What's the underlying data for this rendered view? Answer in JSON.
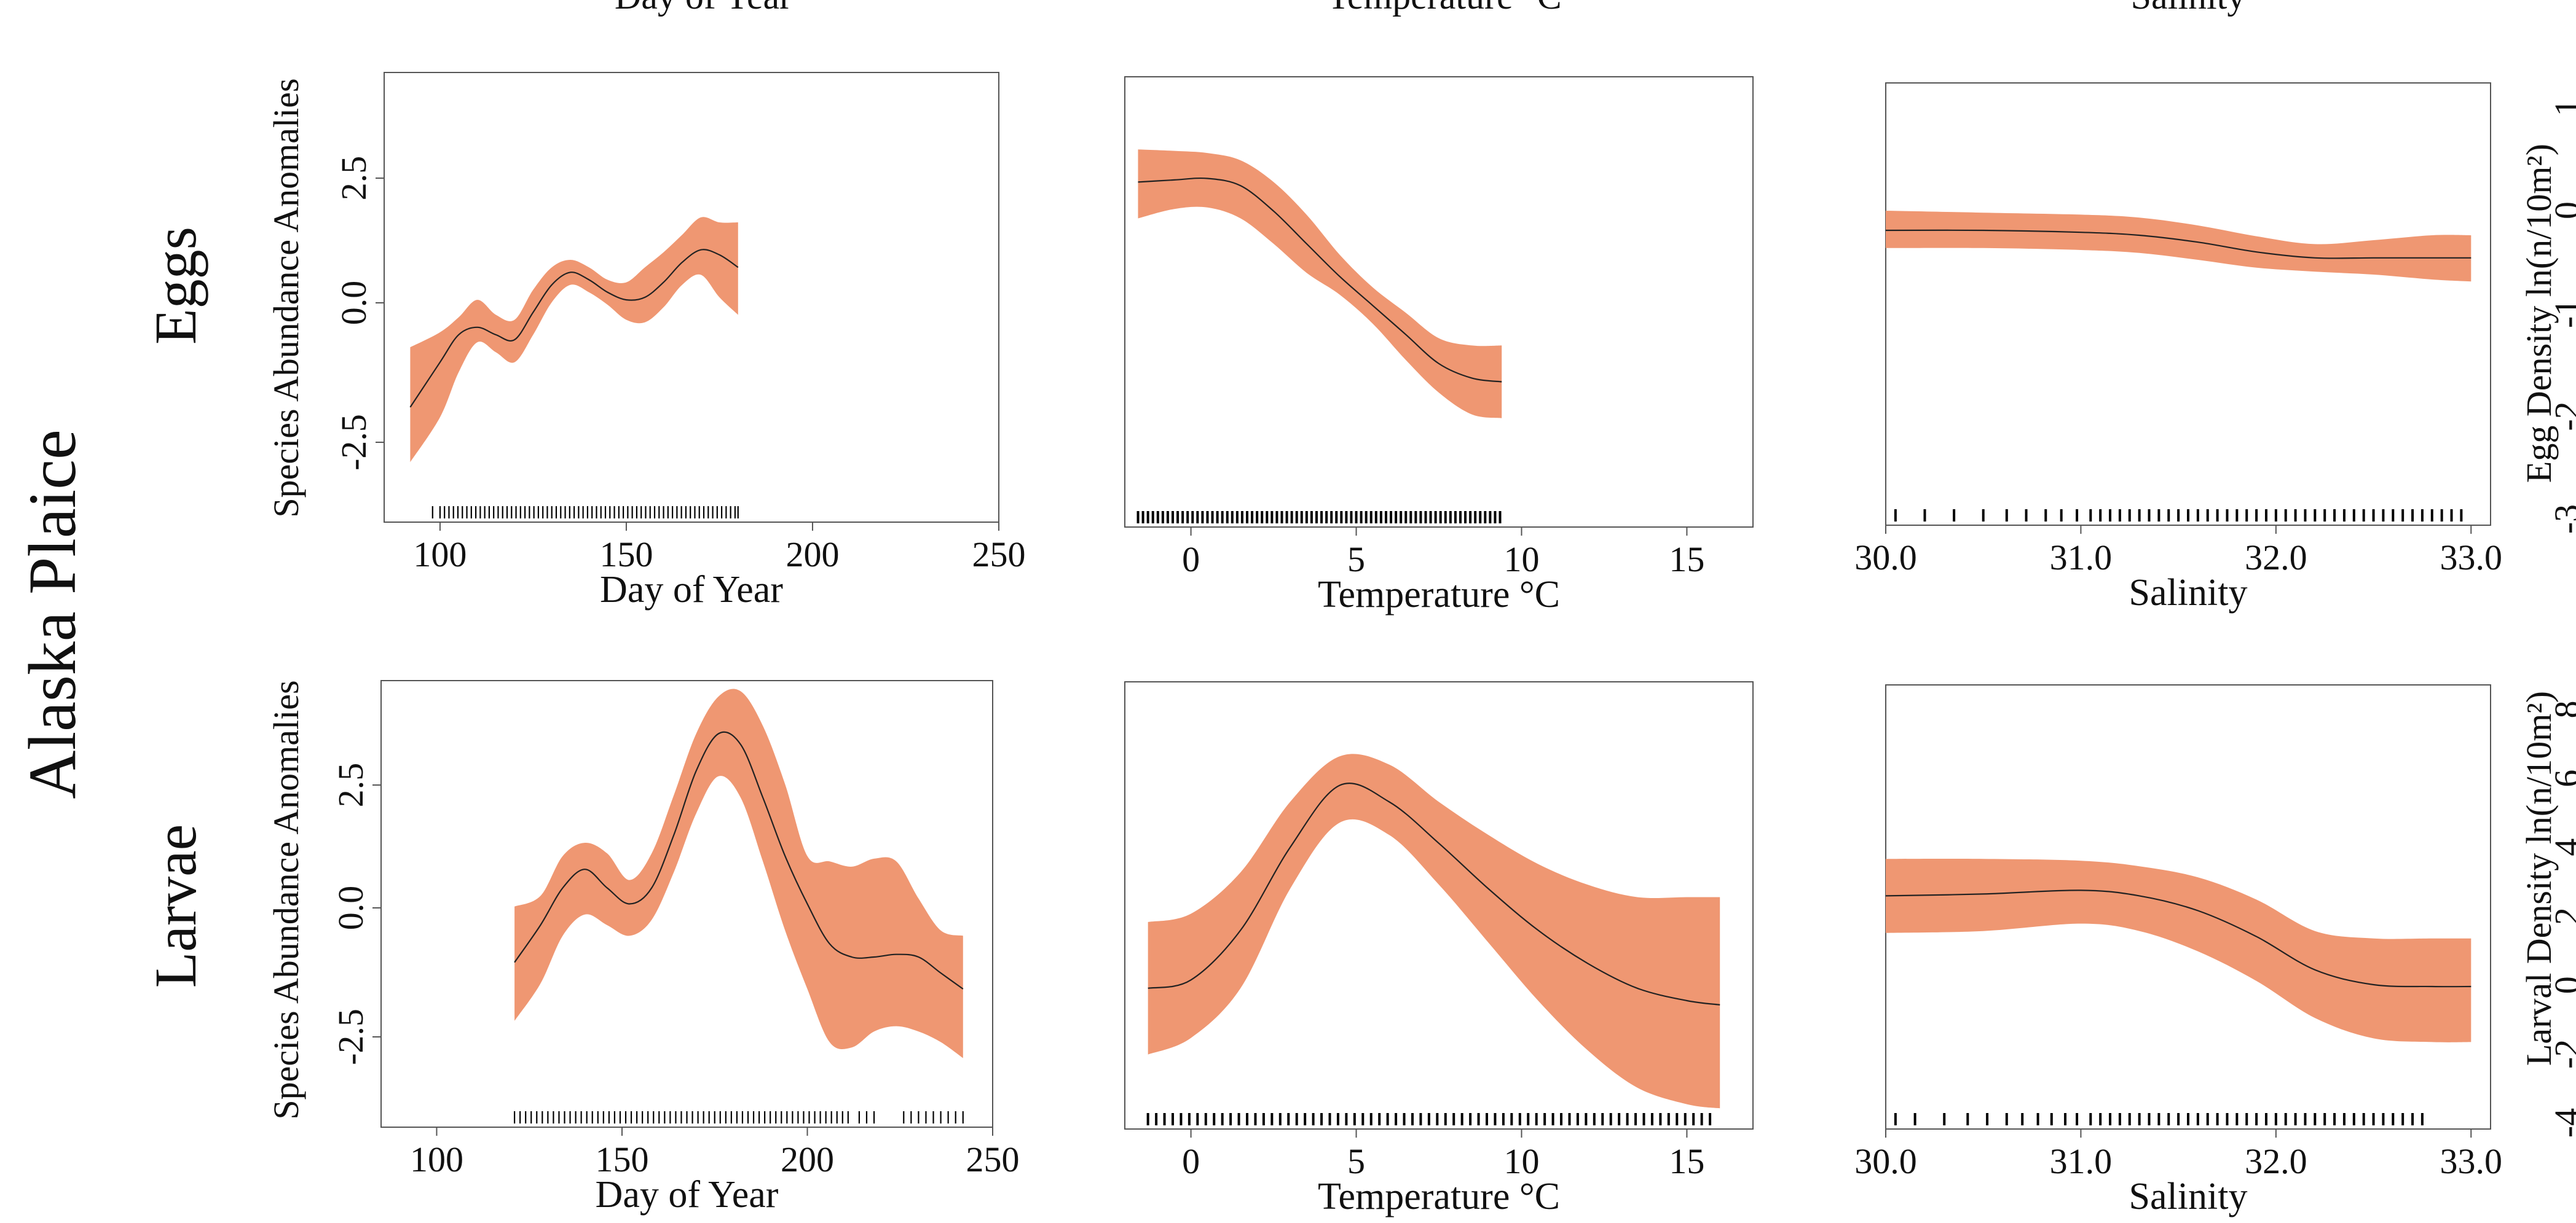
{
  "figure": {
    "species_label": "Alaska Plaice",
    "row_labels": [
      "Eggs",
      "Larvae"
    ],
    "col_headers": [
      "Day of Year",
      "Temperature °C",
      "Salinity"
    ],
    "row_ylabel_left": "Species Abundance Anomalies",
    "right_ylabels": [
      "Egg Density ln(n/10m²)",
      "Larval Density ln(n/10m²)"
    ],
    "band_color": "#ef9772",
    "line_color": "#222222",
    "frame_color": "#555555"
  },
  "chart_data": [
    {
      "type": "area",
      "row": "Eggs",
      "xlabel": "Day of Year",
      "ylabel": "Species Abundance Anomalies",
      "xlim": [
        85,
        250
      ],
      "ylim": [
        -4.5,
        4.5
      ],
      "xticks": [
        "100",
        "150",
        "200",
        "250"
      ],
      "yticks": [
        "-2.5",
        "0.0",
        "2.5"
      ],
      "grid": false,
      "x": [
        92,
        100,
        105,
        110,
        115,
        120,
        125,
        130,
        135,
        140,
        145,
        150,
        155,
        160,
        165,
        170,
        175,
        180
      ],
      "fit": [
        -2.2,
        -1.3,
        -0.75,
        -0.6,
        -0.75,
        -0.85,
        -0.3,
        0.25,
        0.5,
        0.35,
        0.1,
        -0.05,
        0.0,
        0.3,
        0.7,
        0.95,
        0.85,
        0.6
      ],
      "lower": [
        -3.3,
        -2.4,
        -1.5,
        -0.9,
        -1.1,
        -1.3,
        -0.75,
        -0.1,
        0.25,
        0.1,
        -0.15,
        -0.45,
        -0.5,
        -0.2,
        0.25,
        0.45,
        0.0,
        -0.35
      ],
      "upper": [
        -1.0,
        -0.7,
        -0.4,
        -0.05,
        -0.35,
        -0.45,
        0.15,
        0.6,
        0.75,
        0.6,
        0.35,
        0.3,
        0.6,
        0.9,
        1.25,
        1.6,
        1.5,
        1.5
      ],
      "rug": [
        98,
        100,
        101.2,
        102.4,
        103.6,
        104.8,
        106,
        107.2,
        108.4,
        109.6,
        110.8,
        112,
        113.2,
        114.4,
        115.6,
        116.8,
        118,
        119.2,
        120.4,
        121.6,
        122.8,
        124,
        125.2,
        126.4,
        127.6,
        128.8,
        130,
        131.2,
        132.4,
        133.6,
        134.8,
        136,
        137.2,
        138.4,
        139.6,
        140.8,
        142,
        143.2,
        144.4,
        145.6,
        146.8,
        148,
        149.2,
        150.4,
        151.6,
        152.8,
        154,
        155.2,
        156.4,
        157.6,
        158.8,
        160,
        161.2,
        162.4,
        163.6,
        164.8,
        166,
        167.2,
        168.4,
        169.6,
        170.8,
        172,
        173.2,
        174.4,
        175.6,
        176.8,
        178,
        179.2,
        180
      ]
    },
    {
      "type": "area",
      "row": "Eggs",
      "xlabel": "Temperature °C",
      "xlim": [
        -2,
        17
      ],
      "ylim": [
        -3.6,
        2.6
      ],
      "xticks": [
        "0",
        "5",
        "10",
        "15"
      ],
      "grid": false,
      "x": [
        -1.6,
        -0.5,
        0.5,
        1.5,
        2.5,
        3.5,
        4.5,
        5.5,
        6.5,
        7.5,
        8.5,
        9.4
      ],
      "fit": [
        1.15,
        1.18,
        1.2,
        1.1,
        0.75,
        0.3,
        -0.15,
        -0.55,
        -0.95,
        -1.35,
        -1.55,
        -1.6
      ],
      "lower": [
        0.65,
        0.78,
        0.8,
        0.65,
        0.3,
        -0.1,
        -0.4,
        -0.8,
        -1.3,
        -1.75,
        -2.05,
        -2.1
      ],
      "upper": [
        1.6,
        1.58,
        1.55,
        1.45,
        1.15,
        0.7,
        0.15,
        -0.3,
        -0.65,
        -1.0,
        -1.1,
        -1.1
      ],
      "rug": [
        -1.6,
        -1.45,
        -1.3,
        -1.15,
        -1,
        -0.85,
        -0.7,
        -0.55,
        -0.4,
        -0.25,
        -0.1,
        0.05,
        0.2,
        0.35,
        0.5,
        0.65,
        0.8,
        0.95,
        1.1,
        1.25,
        1.4,
        1.55,
        1.7,
        1.85,
        2,
        2.15,
        2.3,
        2.45,
        2.6,
        2.75,
        2.9,
        3.05,
        3.2,
        3.35,
        3.5,
        3.65,
        3.8,
        3.95,
        4.1,
        4.25,
        4.4,
        4.55,
        4.7,
        4.85,
        5,
        5.15,
        5.3,
        5.45,
        5.6,
        5.75,
        5.9,
        6.05,
        6.2,
        6.35,
        6.5,
        6.65,
        6.8,
        6.95,
        7.1,
        7.25,
        7.4,
        7.55,
        7.7,
        7.85,
        8,
        8.15,
        8.3,
        8.45,
        8.6,
        8.75,
        8.9,
        9.05,
        9.2,
        9.35
      ]
    },
    {
      "type": "area",
      "row": "Eggs",
      "xlabel": "Salinity",
      "ylabel_right": "Egg Density ln(n/10m²)",
      "xlim": [
        30.0,
        33.1
      ],
      "ylim": [
        -3.0,
        1.5
      ],
      "xticks": [
        "30.0",
        "31.0",
        "32.0",
        "33.0"
      ],
      "yticks_right": [
        "-3",
        "-2",
        "-1",
        "0",
        "1"
      ],
      "grid": false,
      "x": [
        30.0,
        30.5,
        31.0,
        31.3,
        31.6,
        31.9,
        32.2,
        32.5,
        32.8,
        33.0
      ],
      "fit": [
        0.0,
        0.0,
        -0.02,
        -0.05,
        -0.12,
        -0.22,
        -0.28,
        -0.28,
        -0.28,
        -0.28
      ],
      "lower": [
        -0.18,
        -0.18,
        -0.2,
        -0.23,
        -0.3,
        -0.38,
        -0.42,
        -0.45,
        -0.5,
        -0.52
      ],
      "upper": [
        0.2,
        0.18,
        0.16,
        0.13,
        0.05,
        -0.06,
        -0.14,
        -0.1,
        -0.05,
        -0.05
      ],
      "rug": [
        30.05,
        30.2,
        30.35,
        30.5,
        30.62,
        30.72,
        30.82,
        30.9,
        30.98,
        31.05,
        31.1,
        31.15,
        31.2,
        31.25,
        31.3,
        31.35,
        31.4,
        31.45,
        31.5,
        31.55,
        31.6,
        31.65,
        31.7,
        31.75,
        31.8,
        31.85,
        31.9,
        31.95,
        32,
        32.05,
        32.1,
        32.15,
        32.2,
        32.25,
        32.3,
        32.35,
        32.4,
        32.45,
        32.5,
        32.55,
        32.6,
        32.65,
        32.7,
        32.75,
        32.8,
        32.85,
        32.9,
        32.95
      ]
    },
    {
      "type": "area",
      "row": "Larvae",
      "xlabel": "Day of Year",
      "ylabel": "Species Abundance Anomalies",
      "xlim": [
        85,
        250
      ],
      "ylim": [
        -4.2,
        4.2
      ],
      "xticks": [
        "100",
        "150",
        "200",
        "250"
      ],
      "yticks": [
        "-2.5",
        "0.0",
        "2.5"
      ],
      "grid": false,
      "x": [
        121,
        128,
        134,
        140,
        146,
        152,
        158,
        164,
        170,
        176,
        182,
        188,
        194,
        200,
        206,
        212,
        218,
        224,
        230,
        236,
        242
      ],
      "fit": [
        -1.1,
        -0.4,
        0.3,
        0.65,
        0.3,
        0.0,
        0.3,
        1.3,
        2.5,
        3.2,
        3.0,
        2.0,
        0.9,
        0.0,
        -0.75,
        -1.0,
        -1.0,
        -0.95,
        -1.0,
        -1.3,
        -1.6
      ],
      "lower": [
        -2.2,
        -1.5,
        -0.6,
        -0.2,
        -0.4,
        -0.6,
        -0.3,
        0.6,
        1.7,
        2.4,
        2.0,
        0.8,
        -0.5,
        -1.6,
        -2.6,
        -2.7,
        -2.4,
        -2.3,
        -2.4,
        -2.6,
        -2.9
      ],
      "upper": [
        -0.05,
        0.15,
        0.9,
        1.15,
        0.95,
        0.45,
        0.95,
        2.05,
        3.2,
        3.9,
        4.0,
        3.35,
        2.25,
        0.9,
        0.8,
        0.7,
        0.85,
        0.8,
        0.1,
        -0.5,
        -0.6
      ],
      "rug": [
        121,
        122.5,
        124,
        125.5,
        127,
        128.5,
        130,
        131.5,
        133,
        134.5,
        136,
        137.5,
        139,
        140.5,
        142,
        143.5,
        145,
        146.5,
        148,
        149.5,
        151,
        152.5,
        154,
        155.5,
        157,
        158.5,
        160,
        161.5,
        163,
        164.5,
        166,
        167.5,
        169,
        170.5,
        172,
        173.5,
        175,
        176.5,
        178,
        179.5,
        181,
        182.5,
        184,
        185.5,
        187,
        188.5,
        190,
        191.5,
        193,
        194.5,
        196,
        197.5,
        199,
        200.5,
        202,
        203.5,
        205,
        206.5,
        208,
        209.5,
        211,
        214,
        216,
        218,
        226,
        228,
        230,
        232,
        234,
        236,
        238,
        240,
        242
      ]
    },
    {
      "type": "area",
      "row": "Larvae",
      "xlabel": "Temperature °C",
      "xlim": [
        -2,
        17
      ],
      "ylim": [
        -3.2,
        2.2
      ],
      "xticks": [
        "0",
        "5",
        "10",
        "15"
      ],
      "grid": false,
      "x": [
        -1.3,
        0,
        1.5,
        3,
        4.5,
        6,
        7.5,
        9,
        10.5,
        12,
        13.5,
        15,
        16
      ],
      "fit": [
        -1.5,
        -1.4,
        -0.8,
        0.2,
        0.95,
        0.75,
        0.25,
        -0.3,
        -0.8,
        -1.2,
        -1.5,
        -1.65,
        -1.7
      ],
      "lower": [
        -2.3,
        -2.1,
        -1.5,
        -0.3,
        0.5,
        0.35,
        -0.25,
        -0.95,
        -1.65,
        -2.25,
        -2.7,
        -2.9,
        -2.95
      ],
      "upper": [
        -0.7,
        -0.6,
        -0.1,
        0.75,
        1.3,
        1.2,
        0.75,
        0.35,
        0.0,
        -0.25,
        -0.4,
        -0.4,
        -0.4
      ],
      "rug": [
        -1.3,
        -1.05,
        -0.8,
        -0.55,
        -0.3,
        -0.05,
        0.2,
        0.45,
        0.7,
        0.95,
        1.2,
        1.45,
        1.7,
        1.95,
        2.2,
        2.45,
        2.7,
        2.95,
        3.2,
        3.45,
        3.7,
        3.95,
        4.2,
        4.45,
        4.7,
        4.95,
        5.2,
        5.45,
        5.7,
        5.95,
        6.2,
        6.45,
        6.7,
        6.95,
        7.2,
        7.45,
        7.7,
        7.95,
        8.2,
        8.45,
        8.7,
        8.95,
        9.2,
        9.45,
        9.7,
        9.95,
        10.2,
        10.45,
        10.7,
        10.95,
        11.2,
        11.45,
        11.7,
        11.95,
        12.2,
        12.45,
        12.7,
        12.95,
        13.2,
        13.45,
        13.7,
        13.95,
        14.2,
        14.45,
        14.7,
        14.95,
        15.2,
        15.45,
        15.7
      ]
    },
    {
      "type": "area",
      "row": "Larvae",
      "xlabel": "Salinity",
      "ylabel_right": "Larval Density ln(n/10m²)",
      "xlim": [
        30.0,
        33.1
      ],
      "ylim": [
        -4.0,
        8.0
      ],
      "xticks": [
        "30.0",
        "31.0",
        "32.0",
        "33.0"
      ],
      "yticks_right": [
        "-4",
        "-2",
        "0",
        "2",
        "4",
        "6",
        "8"
      ],
      "grid": false,
      "x": [
        30.0,
        30.5,
        31.0,
        31.3,
        31.6,
        31.9,
        32.2,
        32.5,
        32.8,
        33.0
      ],
      "fit": [
        2.3,
        2.35,
        2.45,
        2.3,
        1.9,
        1.2,
        0.3,
        -0.1,
        -0.15,
        -0.15
      ],
      "lower": [
        1.3,
        1.35,
        1.55,
        1.35,
        0.8,
        0.0,
        -1.0,
        -1.55,
        -1.65,
        -1.65
      ],
      "upper": [
        3.3,
        3.3,
        3.25,
        3.1,
        2.8,
        2.2,
        1.35,
        1.15,
        1.15,
        1.15
      ],
      "rug": [
        30.05,
        30.15,
        30.3,
        30.42,
        30.52,
        30.62,
        30.7,
        30.78,
        30.85,
        30.92,
        30.98,
        31.05,
        31.1,
        31.15,
        31.2,
        31.25,
        31.3,
        31.35,
        31.4,
        31.45,
        31.5,
        31.55,
        31.6,
        31.65,
        31.7,
        31.75,
        31.8,
        31.85,
        31.9,
        31.95,
        32,
        32.05,
        32.1,
        32.15,
        32.2,
        32.25,
        32.3,
        32.35,
        32.4,
        32.45,
        32.5,
        32.55,
        32.6,
        32.65,
        32.7,
        32.75
      ]
    }
  ]
}
